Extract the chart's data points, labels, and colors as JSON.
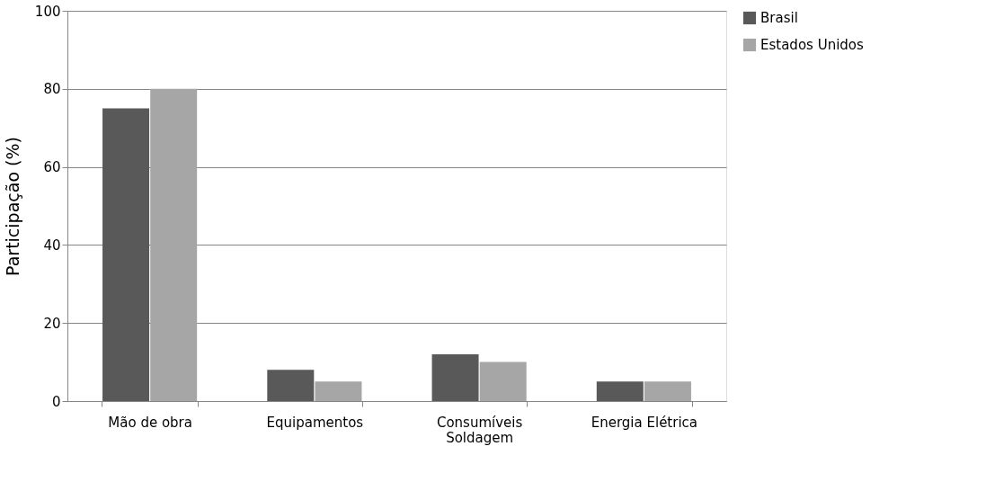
{
  "chart_data": {
    "type": "bar",
    "ylabel": "Participação (%)",
    "categories": [
      "Mão de obra",
      "Equipamentos",
      "Consumíveis Soldagem",
      "Energia Elétrica"
    ],
    "series": [
      {
        "name": "Brasil",
        "color": "#595959",
        "values": [
          75,
          8,
          12,
          5
        ]
      },
      {
        "name": "Estados Unidos",
        "color": "#a6a6a6",
        "values": [
          80,
          5,
          10,
          5
        ]
      }
    ],
    "ylim": [
      0,
      100
    ],
    "yticks": [
      0,
      20,
      40,
      60,
      80,
      100
    ],
    "grid": "y",
    "legend": "right"
  }
}
